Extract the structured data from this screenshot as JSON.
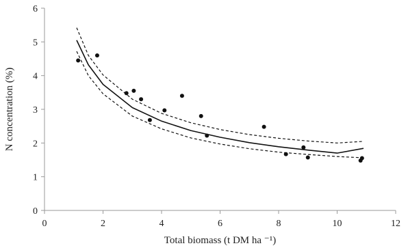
{
  "chart_data": {
    "type": "scatter",
    "title": "",
    "xlabel": "Total biomass (t DM ha ⁻¹)",
    "ylabel": "N concentration (%)",
    "xlim": [
      0,
      12
    ],
    "ylim": [
      0,
      6
    ],
    "x_ticks": [
      "0",
      "2",
      "4",
      "6",
      "8",
      "10",
      "12"
    ],
    "y_ticks": [
      "0",
      "1",
      "2",
      "3",
      "4",
      "5",
      "6"
    ],
    "grid": false,
    "legend": "none",
    "colors": {
      "points": "#111111",
      "fit_line": "#111111",
      "band_lines": "#111111",
      "axes": "#999999"
    },
    "series": [
      {
        "kind": "points",
        "x": [
          1.15,
          1.8,
          2.8,
          3.05,
          3.3,
          3.6,
          4.1,
          4.7,
          5.35,
          5.55,
          7.5,
          8.25,
          8.85,
          9.0,
          10.8,
          10.85
        ],
        "y": [
          4.45,
          4.6,
          3.48,
          3.55,
          3.3,
          2.68,
          2.97,
          3.4,
          2.8,
          2.22,
          2.48,
          1.67,
          1.87,
          1.57,
          1.48,
          1.55
        ]
      },
      {
        "kind": "fit-line",
        "style": "solid",
        "x": [
          1.1,
          1.5,
          2,
          3,
          4,
          5,
          6,
          7,
          8,
          9,
          10,
          10.9
        ],
        "y": [
          5.05,
          4.32,
          3.74,
          3.05,
          2.65,
          2.37,
          2.17,
          2.01,
          1.89,
          1.79,
          1.7,
          1.84
        ]
      },
      {
        "kind": "upper-bound",
        "style": "dashed",
        "x": [
          1.1,
          1.5,
          2,
          3,
          4,
          5,
          6,
          7,
          8,
          9,
          10,
          10.9
        ],
        "y": [
          5.42,
          4.6,
          4.02,
          3.3,
          2.88,
          2.6,
          2.4,
          2.25,
          2.14,
          2.06,
          2.0,
          2.05
        ]
      },
      {
        "kind": "lower-bound",
        "style": "dashed",
        "x": [
          1.1,
          1.5,
          2,
          3,
          4,
          5,
          6,
          7,
          8,
          9,
          10,
          10.9
        ],
        "y": [
          4.72,
          4.0,
          3.46,
          2.8,
          2.42,
          2.15,
          1.97,
          1.83,
          1.73,
          1.66,
          1.6,
          1.56
        ]
      }
    ]
  }
}
